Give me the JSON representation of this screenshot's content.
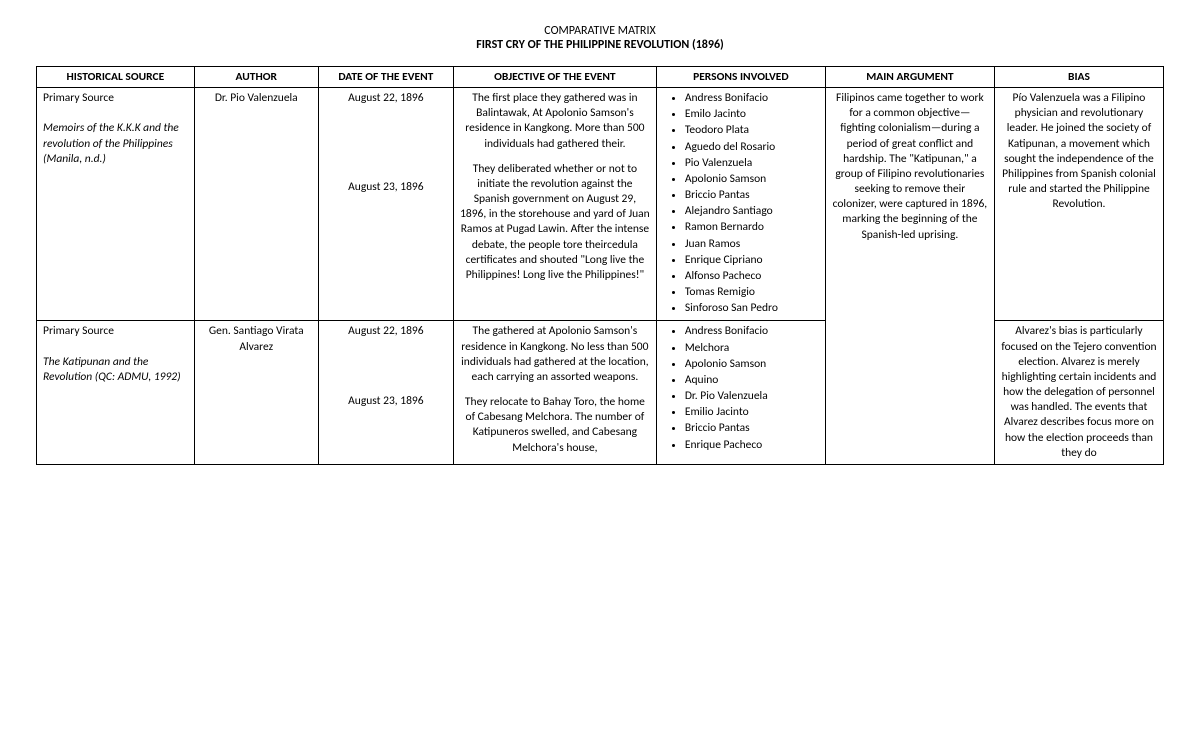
{
  "title_line1": "COMPARATIVE MATRIX",
  "title_line2": "FIRST CRY OF THE PHILIPPINE REVOLUTION (1896)",
  "columns": {
    "c1": "HISTORICAL SOURCE",
    "c2": "AUTHOR",
    "c3": "DATE OF THE EVENT",
    "c4": "OBJECTIVE OF THE EVENT",
    "c5": "PERSONS INVOLVED",
    "c6": "MAIN ARGUMENT",
    "c7": "BIAS"
  },
  "rows": [
    {
      "source_type": "Primary Source",
      "source_title": "Memoirs of the K.K.K and the revolution of the Philippines (Manila, n.d.)",
      "author": "Dr. Pio Valenzuela",
      "dates": [
        "August 22, 1896",
        "August 23, 1896"
      ],
      "objective_p1": "The first place they gathered was in Balintawak, At Apolonio Samson's residence in Kangkong. More than 500 individuals had gathered their.",
      "objective_p2": "They deliberated whether or not to initiate the revolution against the Spanish government on August 29, 1896, in the storehouse and yard of Juan Ramos at Pugad Lawin. After the intense debate, the people tore theircedula certificates and shouted \"Long live the Philippines! Long live the Philippines!\"",
      "persons": [
        "Andress Bonifacio",
        "Emilo Jacinto",
        "Teodoro Plata",
        "Aguedo del Rosario",
        "Pio Valenzuela",
        "Apolonio Samson",
        "Briccio Pantas",
        "Alejandro Santiago",
        "Ramon Bernardo",
        "Juan Ramos",
        "Enrique Cipriano",
        "Alfonso Pacheco",
        "Tomas Remigio",
        "Sinforoso San Pedro"
      ],
      "bias": "Pío Valenzuela  was a Filipino physician and revolutionary leader. He joined the society of Katipunan, a movement which sought the independence of the Philippines from Spanish colonial rule and started the Philippine Revolution."
    },
    {
      "source_type": "Primary Source",
      "source_title": "The Katipunan and the Revolution (QC: ADMU, 1992)",
      "author": "Gen. Santiago Virata Alvarez",
      "dates": [
        "August 22, 1896",
        "August 23, 1896"
      ],
      "objective_p1": "The gathered at Apolonio Samson's residence in Kangkong. No less than 500 individuals had gathered at the location, each carrying an assorted weapons.",
      "objective_p2": "They relocate to Bahay Toro, the home of Cabesang Melchora. The number of Katipuneros swelled, and Cabesang Melchora's house,",
      "persons": [
        "Andress Bonifacio",
        "Melchora",
        "Apolonio Samson",
        "Aquino",
        "Dr. Pio Valenzuela",
        "Emilio Jacinto",
        "Briccio Pantas",
        "Enrique Pacheco"
      ],
      "bias": "Alvarez's bias is particularly focused on the Tejero convention election. Alvarez is merely highlighting certain incidents and how the delegation of personnel was handled. The events that Alvarez describes focus more on how the election proceeds than they do"
    }
  ],
  "main_argument": "Filipinos came together to work for a common objective—fighting colonialism—during a period of great conflict and hardship. The \"Katipunan,\" a group of Filipino revolutionaries seeking to remove their colonizer, were captured in 1896, marking the beginning of the Spanish-led uprising."
}
